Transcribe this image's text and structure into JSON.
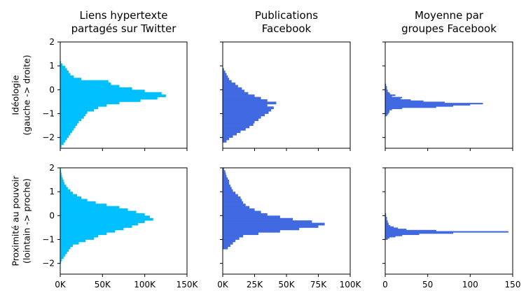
{
  "chart_data": {
    "type": "bar",
    "orientation": "horizontal-histogram",
    "grid": false,
    "columns": [
      {
        "title": [
          "Liens hypertexte",
          "partagés sur Twitter"
        ],
        "color": "#00bfff",
        "xlim": [
          0,
          150000
        ],
        "xticks": [
          0,
          50000,
          100000,
          150000
        ],
        "xtick_labels": [
          "0K",
          "50K",
          "100K",
          "150K"
        ]
      },
      {
        "title": [
          "Publications",
          "Facebook"
        ],
        "color": "#4169e1",
        "xlim": [
          0,
          100000
        ],
        "xticks": [
          0,
          25000,
          50000,
          75000,
          100000
        ],
        "xtick_labels": [
          "0K",
          "25K",
          "50K",
          "75K",
          "100K"
        ]
      },
      {
        "title": [
          "Moyenne par",
          "groupes Facebook"
        ],
        "color": "#4169e1",
        "xlim": [
          0,
          150
        ],
        "xticks": [
          0,
          50,
          100,
          150
        ],
        "xtick_labels": [
          "0",
          "50",
          "100",
          "150"
        ]
      }
    ],
    "rows": [
      {
        "ylabel": [
          "Idéologie",
          "(gauche -> droite)"
        ],
        "ylim": [
          -2.45,
          2.0
        ],
        "yticks": [
          2,
          1,
          0,
          -1,
          -2
        ],
        "ytick_labels": [
          "2",
          "1",
          "0",
          "−1",
          "−2"
        ]
      },
      {
        "ylabel": [
          "Proximité au pouvoir",
          "(lointain -> proche)"
        ],
        "ylim": [
          -2.45,
          2.0
        ],
        "yticks": [
          2,
          1,
          0,
          -1,
          -2
        ],
        "ytick_labels": [
          "2",
          "1",
          "0",
          "−1",
          "−2"
        ]
      }
    ],
    "panels": [
      {
        "row": 0,
        "col": 0,
        "bin_start": -2.4,
        "bin_width": 0.1,
        "values": [
          1500,
          4000,
          6000,
          8000,
          10000,
          12000,
          14000,
          16000,
          18000,
          20000,
          22000,
          25000,
          28000,
          30000,
          32000,
          40000,
          45000,
          55000,
          70000,
          95000,
          115000,
          125000,
          120000,
          100000,
          85000,
          70000,
          60000,
          57000,
          25000,
          16000,
          12000,
          10000,
          8000,
          6000,
          2500,
          1000
        ]
      },
      {
        "row": 0,
        "col": 1,
        "bin_start": -2.2,
        "bin_width": 0.1,
        "values": [
          3000,
          5000,
          8000,
          11000,
          14000,
          18000,
          21000,
          24000,
          25000,
          28000,
          30000,
          33000,
          36000,
          38000,
          40000,
          35000,
          42000,
          35000,
          30000,
          25000,
          20000,
          17000,
          15000,
          12000,
          10000,
          7000,
          5000,
          4000,
          3000,
          2000,
          1000
        ]
      },
      {
        "row": 0,
        "col": 2,
        "bin_start": -1.1,
        "bin_width": 0.05,
        "values": [
          2,
          3,
          4,
          5,
          5,
          8,
          20,
          60,
          80,
          100,
          115,
          70,
          45,
          30,
          18,
          20,
          8,
          12,
          6,
          5,
          3,
          3,
          2,
          2,
          2,
          1,
          1
        ]
      },
      {
        "row": 1,
        "col": 0,
        "bin_start": -2.0,
        "bin_width": 0.1,
        "values": [
          1000,
          2000,
          4000,
          6000,
          8000,
          10000,
          12000,
          15000,
          22000,
          30000,
          40000,
          45000,
          55000,
          65000,
          75000,
          85000,
          92000,
          100000,
          110000,
          106000,
          100000,
          90000,
          80000,
          70000,
          55000,
          42000,
          32000,
          25000,
          20000,
          15000,
          12000,
          9000,
          7000,
          5000,
          4000,
          3000,
          2000,
          1500,
          1000,
          700,
          400
        ]
      },
      {
        "row": 1,
        "col": 1,
        "bin_start": -1.4,
        "bin_width": 0.1,
        "values": [
          4000,
          6000,
          8000,
          10000,
          13000,
          16000,
          28000,
          45000,
          60000,
          75000,
          80000,
          70000,
          55000,
          45000,
          35000,
          30000,
          25000,
          21000,
          18000,
          16000,
          15000,
          14000,
          12000,
          10000,
          8000,
          7000,
          6000,
          5000,
          5000,
          4000,
          3000,
          2500,
          2000,
          1000,
          700
        ]
      },
      {
        "row": 1,
        "col": 2,
        "bin_start": -1.0,
        "bin_width": 0.05,
        "values": [
          3,
          5,
          12,
          20,
          40,
          80,
          145,
          60,
          25,
          15,
          10,
          6,
          4,
          4,
          3,
          3,
          2,
          2,
          2,
          1,
          1,
          1
        ]
      }
    ]
  }
}
